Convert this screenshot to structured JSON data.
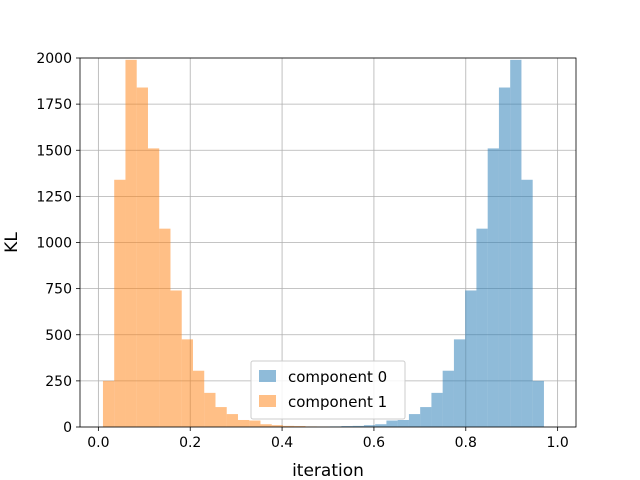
{
  "chart_data": {
    "type": "histogram",
    "xlabel": "iteration",
    "ylabel": "KL",
    "xlim": [
      -0.04,
      1.04
    ],
    "ylim": [
      0,
      2000
    ],
    "xticks": [
      0.0,
      0.2,
      0.4,
      0.6,
      0.8,
      1.0
    ],
    "xtick_labels": [
      "0.0",
      "0.2",
      "0.4",
      "0.6",
      "0.8",
      "1.0"
    ],
    "yticks": [
      0,
      250,
      500,
      750,
      1000,
      1250,
      1500,
      1750,
      2000
    ],
    "ytick_labels": [
      "0",
      "250",
      "500",
      "750",
      "1000",
      "1250",
      "1500",
      "1750",
      "2000"
    ],
    "grid": true,
    "legend_position": "lower-center",
    "series": [
      {
        "name": "component 0",
        "color": "#1f77b4",
        "alpha": 0.5,
        "bin_width": 0.0245,
        "bins": [
          {
            "x": 0.4557,
            "count": 2
          },
          {
            "x": 0.4802,
            "count": 2
          },
          {
            "x": 0.5047,
            "count": 3
          },
          {
            "x": 0.5292,
            "count": 5
          },
          {
            "x": 0.5537,
            "count": 6
          },
          {
            "x": 0.5782,
            "count": 10
          },
          {
            "x": 0.6027,
            "count": 15
          },
          {
            "x": 0.6272,
            "count": 35
          },
          {
            "x": 0.6517,
            "count": 38
          },
          {
            "x": 0.6762,
            "count": 70
          },
          {
            "x": 0.7007,
            "count": 108
          },
          {
            "x": 0.7252,
            "count": 185
          },
          {
            "x": 0.7497,
            "count": 305
          },
          {
            "x": 0.7742,
            "count": 475
          },
          {
            "x": 0.7987,
            "count": 740
          },
          {
            "x": 0.8232,
            "count": 1075
          },
          {
            "x": 0.8477,
            "count": 1510
          },
          {
            "x": 0.8722,
            "count": 1840
          },
          {
            "x": 0.8967,
            "count": 1990
          },
          {
            "x": 0.9212,
            "count": 1340
          },
          {
            "x": 0.9457,
            "count": 250
          }
        ]
      },
      {
        "name": "component 1",
        "color": "#ff7f0e",
        "alpha": 0.5,
        "bin_width": 0.0245,
        "bins": [
          {
            "x": 0.01,
            "count": 250
          },
          {
            "x": 0.0345,
            "count": 1340
          },
          {
            "x": 0.059,
            "count": 1990
          },
          {
            "x": 0.0835,
            "count": 1840
          },
          {
            "x": 0.108,
            "count": 1510
          },
          {
            "x": 0.1325,
            "count": 1075
          },
          {
            "x": 0.157,
            "count": 740
          },
          {
            "x": 0.1815,
            "count": 475
          },
          {
            "x": 0.206,
            "count": 305
          },
          {
            "x": 0.2305,
            "count": 185
          },
          {
            "x": 0.255,
            "count": 108
          },
          {
            "x": 0.2795,
            "count": 70
          },
          {
            "x": 0.304,
            "count": 38
          },
          {
            "x": 0.3285,
            "count": 35
          },
          {
            "x": 0.353,
            "count": 15
          },
          {
            "x": 0.3775,
            "count": 10
          },
          {
            "x": 0.402,
            "count": 6
          },
          {
            "x": 0.4265,
            "count": 5
          },
          {
            "x": 0.451,
            "count": 3
          },
          {
            "x": 0.4755,
            "count": 2
          }
        ]
      }
    ]
  }
}
